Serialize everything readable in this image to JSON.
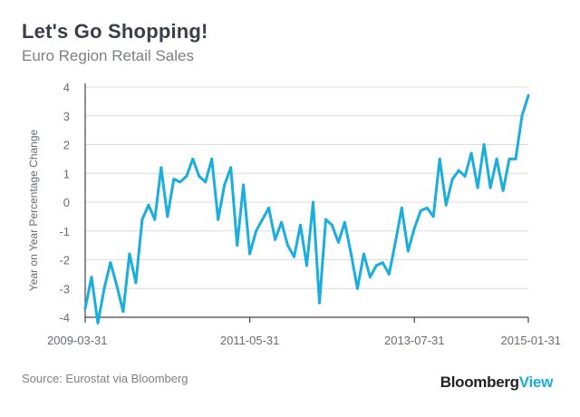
{
  "header": {
    "title": "Let's Go Shopping!",
    "subtitle": "Euro Region Retail Sales"
  },
  "footer": {
    "source": "Source: Eurostat via Bloomberg",
    "brand_part1": "Bloomberg",
    "brand_part2": "View"
  },
  "colors": {
    "line": "#1aaede",
    "grid": "#dcdcdc",
    "axis": "#444444"
  },
  "chart_data": {
    "type": "line",
    "title": "Let's Go Shopping!",
    "subtitle": "Euro Region Retail Sales",
    "xlabel": "",
    "ylabel": "Year on Year Percentage Change",
    "ylim": [
      -4,
      4
    ],
    "yticks": [
      -4,
      -3,
      -2,
      -1,
      0,
      1,
      2,
      3,
      4
    ],
    "ytick_labels": [
      "-4",
      "-3",
      "-2",
      "-1",
      "0",
      "1",
      "2",
      "3",
      "4"
    ],
    "xticks": [
      "2009-03-31",
      "2011-05-31",
      "2013-07-31",
      "2015-01-31"
    ],
    "x_start": "2009-03-31",
    "x_end": "2015-01-31",
    "grid": true,
    "series": [
      {
        "name": "Euro Region Retail Sales YoY %",
        "x": [
          "2009-03",
          "2009-04",
          "2009-05",
          "2009-06",
          "2009-07",
          "2009-08",
          "2009-09",
          "2009-10",
          "2009-11",
          "2009-12",
          "2010-01",
          "2010-02",
          "2010-03",
          "2010-04",
          "2010-05",
          "2010-06",
          "2010-07",
          "2010-08",
          "2010-09",
          "2010-10",
          "2010-11",
          "2010-12",
          "2011-01",
          "2011-02",
          "2011-03",
          "2011-04",
          "2011-05",
          "2011-06",
          "2011-07",
          "2011-08",
          "2011-09",
          "2011-10",
          "2011-11",
          "2011-12",
          "2012-01",
          "2012-02",
          "2012-03",
          "2012-04",
          "2012-05",
          "2012-06",
          "2012-07",
          "2012-08",
          "2012-09",
          "2012-10",
          "2012-11",
          "2012-12",
          "2013-01",
          "2013-02",
          "2013-03",
          "2013-04",
          "2013-05",
          "2013-06",
          "2013-07",
          "2013-08",
          "2013-09",
          "2013-10",
          "2013-11",
          "2013-12",
          "2014-01",
          "2014-02",
          "2014-03",
          "2014-04",
          "2014-05",
          "2014-06",
          "2014-07",
          "2014-08",
          "2014-09",
          "2014-10",
          "2014-11",
          "2014-12",
          "2015-01"
        ],
        "values": [
          -3.7,
          -2.6,
          -4.2,
          -3.0,
          -2.1,
          -2.9,
          -3.8,
          -1.8,
          -2.8,
          -0.6,
          -0.1,
          -0.6,
          1.2,
          -0.5,
          0.8,
          0.7,
          0.9,
          1.5,
          0.9,
          0.7,
          1.5,
          -0.6,
          0.6,
          1.2,
          -1.5,
          0.6,
          -1.8,
          -1.0,
          -0.6,
          -0.2,
          -1.3,
          -0.7,
          -1.5,
          -1.9,
          -0.8,
          -2.2,
          0.0,
          -3.5,
          -0.6,
          -0.8,
          -1.4,
          -0.7,
          -1.8,
          -3.0,
          -1.8,
          -2.6,
          -2.2,
          -2.1,
          -2.5,
          -1.4,
          -0.2,
          -1.7,
          -0.9,
          -0.3,
          -0.2,
          -0.5,
          1.5,
          -0.1,
          0.8,
          1.1,
          0.9,
          1.7,
          0.5,
          2.0,
          0.5,
          1.5,
          0.4,
          1.5,
          1.5,
          3.0,
          3.7
        ]
      }
    ]
  }
}
